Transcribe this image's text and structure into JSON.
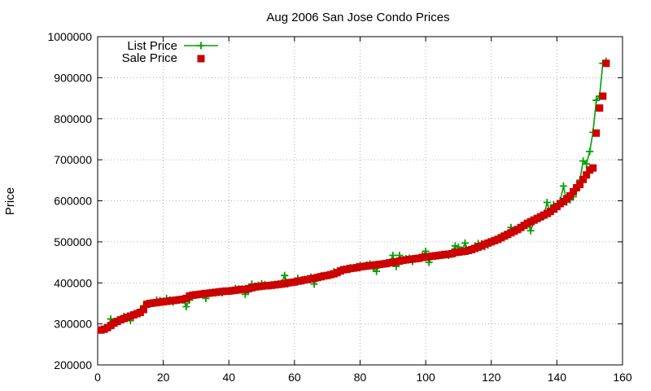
{
  "chart_data": {
    "type": "line",
    "title": "Aug 2006 San Jose Condo Prices",
    "xlabel": "",
    "ylabel": "Price",
    "xlim": [
      0,
      160
    ],
    "ylim": [
      200000,
      1000000
    ],
    "xticks": [
      0,
      20,
      40,
      60,
      80,
      100,
      120,
      140,
      160
    ],
    "yticks": [
      200000,
      300000,
      400000,
      500000,
      600000,
      700000,
      800000,
      900000,
      1000000
    ],
    "grid": true,
    "legend": "top-left",
    "colors": {
      "list": "#00a000",
      "sale": "#cc0000"
    },
    "series": [
      {
        "name": "List Price",
        "style": "line+plus",
        "x": [
          1,
          2,
          3,
          4,
          5,
          6,
          7,
          8,
          9,
          10,
          11,
          12,
          13,
          14,
          15,
          16,
          17,
          18,
          19,
          20,
          21,
          22,
          23,
          24,
          25,
          26,
          27,
          28,
          29,
          30,
          31,
          32,
          33,
          34,
          35,
          36,
          37,
          38,
          39,
          40,
          41,
          42,
          43,
          44,
          45,
          46,
          47,
          48,
          49,
          50,
          51,
          52,
          53,
          54,
          55,
          56,
          57,
          58,
          59,
          60,
          61,
          62,
          63,
          64,
          65,
          66,
          67,
          68,
          69,
          70,
          71,
          72,
          73,
          74,
          75,
          76,
          77,
          78,
          79,
          80,
          81,
          82,
          83,
          84,
          85,
          86,
          87,
          88,
          89,
          90,
          91,
          92,
          93,
          94,
          95,
          96,
          97,
          98,
          99,
          100,
          101,
          102,
          103,
          104,
          105,
          106,
          107,
          108,
          109,
          110,
          111,
          112,
          113,
          114,
          115,
          116,
          117,
          118,
          119,
          120,
          121,
          122,
          123,
          124,
          125,
          126,
          127,
          128,
          129,
          130,
          131,
          132,
          133,
          134,
          135,
          136,
          137,
          138,
          139,
          140,
          141,
          142,
          143,
          144,
          145,
          146,
          147,
          148,
          149,
          150,
          151,
          152,
          153,
          154,
          155
        ],
        "values": [
          285000,
          287000,
          290000,
          312000,
          300000,
          306000,
          310000,
          318000,
          314000,
          308000,
          322000,
          327000,
          330000,
          344000,
          349000,
          350000,
          350000,
          358000,
          357000,
          355000,
          362000,
          358000,
          353000,
          357000,
          359000,
          358000,
          342000,
          358000,
          371000,
          370000,
          372000,
          374000,
          362000,
          375000,
          376000,
          376000,
          377000,
          376000,
          379000,
          379000,
          381000,
          386000,
          385000,
          385000,
          372000,
          382000,
          397000,
          392000,
          394000,
          398000,
          396000,
          393000,
          395000,
          396000,
          397000,
          399000,
          418000,
          398000,
          401000,
          404000,
          411000,
          406000,
          408000,
          410000,
          414000,
          397000,
          412000,
          414000,
          415000,
          418000,
          420000,
          427000,
          424000,
          430000,
          433000,
          435000,
          437000,
          436000,
          440000,
          442000,
          440000,
          444000,
          446000,
          437000,
          428000,
          444000,
          447000,
          448000,
          450000,
          467000,
          440000,
          467000,
          455000,
          459000,
          460000,
          452000,
          460000,
          461000,
          466000,
          477000,
          450000,
          466000,
          465000,
          468000,
          470000,
          470000,
          467000,
          475000,
          490000,
          487000,
          479000,
          497000,
          478000,
          483000,
          490000,
          496000,
          495000,
          488000,
          492000,
          500000,
          503000,
          506000,
          513000,
          517000,
          520000,
          535000,
          527000,
          530000,
          535000,
          540000,
          545000,
          527000,
          550000,
          555000,
          560000,
          563000,
          596000,
          570000,
          590000,
          580000,
          600000,
          636000,
          597000,
          602000,
          610000,
          630000,
          650000,
          697000,
          690000,
          720000,
          767000,
          845000,
          855000,
          935000,
          940000
        ]
      },
      {
        "name": "Sale Price",
        "style": "points",
        "x": [
          1,
          2,
          3,
          4,
          5,
          6,
          7,
          8,
          9,
          10,
          11,
          12,
          13,
          14,
          15,
          16,
          17,
          18,
          19,
          20,
          21,
          22,
          23,
          24,
          25,
          26,
          27,
          28,
          29,
          30,
          31,
          32,
          33,
          34,
          35,
          36,
          37,
          38,
          39,
          40,
          41,
          42,
          43,
          44,
          45,
          46,
          47,
          48,
          49,
          50,
          51,
          52,
          53,
          54,
          55,
          56,
          57,
          58,
          59,
          60,
          61,
          62,
          63,
          64,
          65,
          66,
          67,
          68,
          69,
          70,
          71,
          72,
          73,
          74,
          75,
          76,
          77,
          78,
          79,
          80,
          81,
          82,
          83,
          84,
          85,
          86,
          87,
          88,
          89,
          90,
          91,
          92,
          93,
          94,
          95,
          96,
          97,
          98,
          99,
          100,
          101,
          102,
          103,
          104,
          105,
          106,
          107,
          108,
          109,
          110,
          111,
          112,
          113,
          114,
          115,
          116,
          117,
          118,
          119,
          120,
          121,
          122,
          123,
          124,
          125,
          126,
          127,
          128,
          129,
          130,
          131,
          132,
          133,
          134,
          135,
          136,
          137,
          138,
          139,
          140,
          141,
          142,
          143,
          144,
          145,
          146,
          147,
          148,
          149,
          150,
          151,
          152,
          153,
          154,
          155
        ],
        "values": [
          285000,
          287000,
          291000,
          296000,
          302000,
          306000,
          310000,
          313000,
          316000,
          319000,
          322000,
          325000,
          328000,
          335000,
          348000,
          350000,
          351000,
          352000,
          353000,
          354000,
          355000,
          356000,
          357000,
          358000,
          359000,
          360000,
          362000,
          368000,
          370000,
          371000,
          372000,
          373000,
          374000,
          375000,
          376000,
          377000,
          378000,
          379000,
          380000,
          380000,
          381000,
          382000,
          383000,
          384000,
          384000,
          386000,
          388000,
          390000,
          391000,
          392000,
          393000,
          393000,
          394000,
          395000,
          396000,
          397000,
          398000,
          400000,
          401000,
          402000,
          404000,
          405000,
          407000,
          408000,
          410000,
          411000,
          413000,
          415000,
          417000,
          418000,
          420000,
          422000,
          425000,
          429000,
          432000,
          433000,
          435000,
          436000,
          437000,
          439000,
          440000,
          441000,
          442000,
          443000,
          444000,
          445000,
          446000,
          447000,
          449000,
          450000,
          451000,
          453000,
          455000,
          456000,
          457000,
          458000,
          459000,
          460000,
          462000,
          463000,
          464000,
          465000,
          466000,
          467000,
          468000,
          469000,
          470000,
          471000,
          474000,
          475000,
          476000,
          477000,
          479000,
          481000,
          484000,
          487000,
          490000,
          494000,
          497000,
          500000,
          503000,
          506000,
          510000,
          514000,
          518000,
          522000,
          526000,
          530000,
          535000,
          540000,
          545000,
          549000,
          553000,
          557000,
          561000,
          565000,
          569000,
          574000,
          580000,
          586000,
          593000,
          598000,
          605000,
          612000,
          622000,
          632000,
          640000,
          652000,
          663000,
          675000,
          680000,
          765000,
          826000,
          855000,
          935000
        ]
      }
    ]
  }
}
